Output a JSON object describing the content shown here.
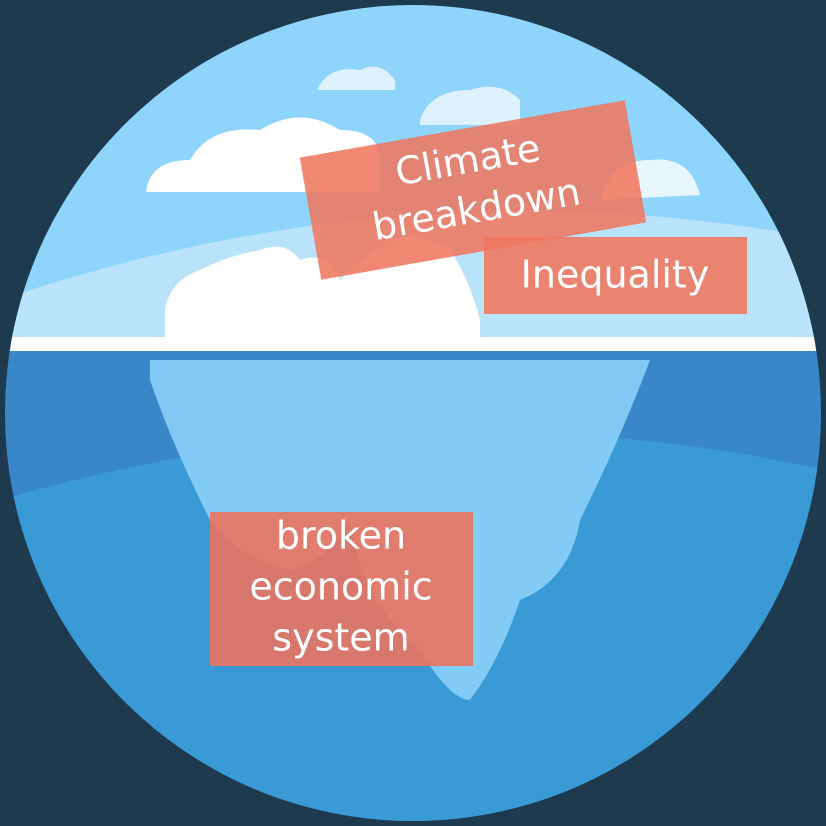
{
  "labels": [
    {
      "lines": [
        "Climate",
        "breakdown"
      ]
    },
    {
      "lines": [
        "Inequality"
      ]
    },
    {
      "lines": [
        "broken",
        "economic",
        "system"
      ]
    }
  ]
}
